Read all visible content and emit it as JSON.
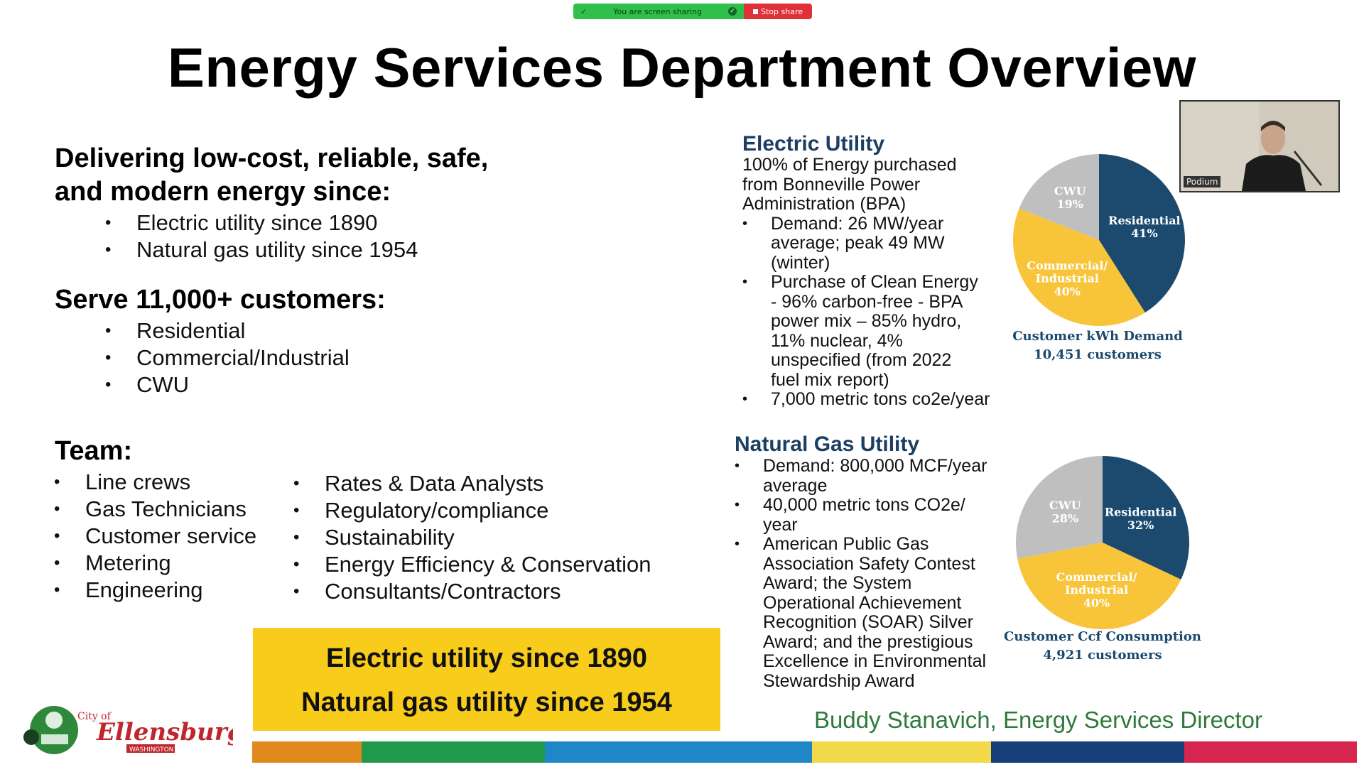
{
  "share_bar": {
    "status": "You are screen sharing",
    "stop": "Stop share"
  },
  "title": "Energy Services Department Overview",
  "mission": {
    "heading_line1": "Delivering low-cost, reliable, safe,",
    "heading_line2": "and modern energy since:",
    "items": [
      "Electric utility since 1890",
      "Natural gas utility since 1954"
    ]
  },
  "customers": {
    "heading": "Serve 11,000+ customers:",
    "items": [
      "Residential",
      "Commercial/Industrial",
      "CWU"
    ]
  },
  "team": {
    "heading": "Team:",
    "col1": [
      "Line crews",
      "Gas Technicians",
      "Customer service",
      "Metering",
      "Engineering"
    ],
    "col2": [
      "Rates & Data Analysts",
      "Regulatory/compliance",
      "Sustainability",
      "Energy Efficiency & Conservation",
      "Consultants/Contractors"
    ]
  },
  "electric": {
    "heading": "Electric Utility",
    "intro": "100% of Energy purchased from Bonneville Power Administration (BPA)",
    "bullets": [
      "Demand: 26 MW/year average; peak 49 MW (winter)",
      "Purchase of Clean Energy - 96% carbon-free - BPA power mix – 85% hydro, 11% nuclear, 4% unspecified (from 2022 fuel mix report)",
      "7,000 metric tons co2e/year"
    ],
    "pie_caption1": "Customer kWh Demand",
    "pie_caption2": "10,451 customers"
  },
  "gas": {
    "heading": "Natural Gas Utility",
    "bullets": [
      "Demand: 800,000 MCF/year average",
      "40,000 metric tons CO2e/ year",
      "American Public Gas Association Safety Contest Award; the System Operational Achievement Recognition (SOAR) Silver Award; and the prestigious Excellence in Environmental Stewardship Award"
    ],
    "pie_caption1": "Customer Ccf Consumption",
    "pie_caption2": "4,921 customers"
  },
  "chart_data": [
    {
      "type": "pie",
      "title": "Customer kWh Demand",
      "categories": [
        "Residential",
        "Commercial/ Industrial",
        "CWU"
      ],
      "values": [
        41,
        40,
        19
      ],
      "labels": [
        "41%",
        "40%",
        "19%"
      ],
      "colors": [
        "#1b4a6e",
        "#f8c43a",
        "#bfbfbf"
      ]
    },
    {
      "type": "pie",
      "title": "Customer Ccf Consumption",
      "categories": [
        "Residential",
        "Commercial/ Industrial",
        "CWU"
      ],
      "values": [
        32,
        40,
        28
      ],
      "labels": [
        "32%",
        "40%",
        "28%"
      ],
      "colors": [
        "#1b4a6e",
        "#f8c43a",
        "#bfbfbf"
      ]
    }
  ],
  "pip": {
    "label": "Podium"
  },
  "banner": {
    "line1": "Electric utility since 1890",
    "line2": "Natural gas utility since 1954"
  },
  "director": "Buddy Stanavich, Energy Services Director",
  "logo": {
    "city_of": "City of",
    "name": "Ellensburg",
    "state": "WASHINGTON"
  },
  "stripe_colors": [
    "#e08a1e",
    "#1f9a4a",
    "#1f86c8",
    "#f1d94a",
    "#173f78",
    "#d6264f"
  ]
}
